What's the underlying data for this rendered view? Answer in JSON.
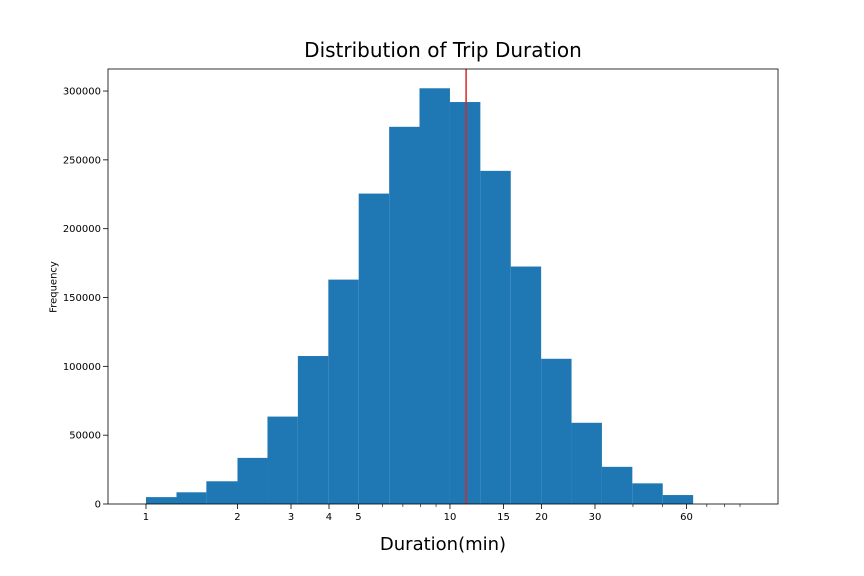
{
  "chart_data": {
    "type": "bar",
    "title": "Distribution of Trip Duration",
    "xlabel": "Duration(min)",
    "ylabel": "Frequency",
    "x_scale": "log",
    "xlim": [
      0.75,
      120
    ],
    "ylim": [
      0,
      316000
    ],
    "grid": false,
    "bar_color": "#1f77b4",
    "marker_color": "#d62728",
    "marker_line_x": 11.3,
    "bins": [
      {
        "start": 1.0,
        "end": 1.26,
        "count": 5000
      },
      {
        "start": 1.26,
        "end": 1.58,
        "count": 8500
      },
      {
        "start": 1.58,
        "end": 2.0,
        "count": 16500
      },
      {
        "start": 2.0,
        "end": 2.51,
        "count": 33500
      },
      {
        "start": 2.51,
        "end": 3.16,
        "count": 63500
      },
      {
        "start": 3.16,
        "end": 3.98,
        "count": 107500
      },
      {
        "start": 3.98,
        "end": 5.01,
        "count": 163000
      },
      {
        "start": 5.01,
        "end": 6.31,
        "count": 225500
      },
      {
        "start": 6.31,
        "end": 7.94,
        "count": 274000
      },
      {
        "start": 7.94,
        "end": 10.0,
        "count": 302000
      },
      {
        "start": 10.0,
        "end": 12.59,
        "count": 292000
      },
      {
        "start": 12.59,
        "end": 15.85,
        "count": 242000
      },
      {
        "start": 15.85,
        "end": 19.95,
        "count": 172500
      },
      {
        "start": 19.95,
        "end": 25.12,
        "count": 105500
      },
      {
        "start": 25.12,
        "end": 31.62,
        "count": 59000
      },
      {
        "start": 31.62,
        "end": 39.81,
        "count": 27000
      },
      {
        "start": 39.81,
        "end": 50.12,
        "count": 15000
      },
      {
        "start": 50.12,
        "end": 63.1,
        "count": 6500
      }
    ],
    "x_ticks": [
      {
        "value": 1,
        "label": "1"
      },
      {
        "value": 2,
        "label": "2"
      },
      {
        "value": 3,
        "label": "3"
      },
      {
        "value": 4,
        "label": "4"
      },
      {
        "value": 5,
        "label": "5"
      },
      {
        "value": 10,
        "label": "10"
      },
      {
        "value": 15,
        "label": "15"
      },
      {
        "value": 20,
        "label": "20"
      },
      {
        "value": 30,
        "label": "30"
      },
      {
        "value": 60,
        "label": "60"
      }
    ],
    "x_minor_ticks": [
      6,
      7,
      8,
      9,
      40,
      50,
      70,
      80,
      90
    ],
    "y_ticks": [
      {
        "value": 0,
        "label": "0"
      },
      {
        "value": 50000,
        "label": "50000"
      },
      {
        "value": 100000,
        "label": "100000"
      },
      {
        "value": 150000,
        "label": "150000"
      },
      {
        "value": 200000,
        "label": "200000"
      },
      {
        "value": 250000,
        "label": "250000"
      },
      {
        "value": 300000,
        "label": "300000"
      }
    ]
  }
}
